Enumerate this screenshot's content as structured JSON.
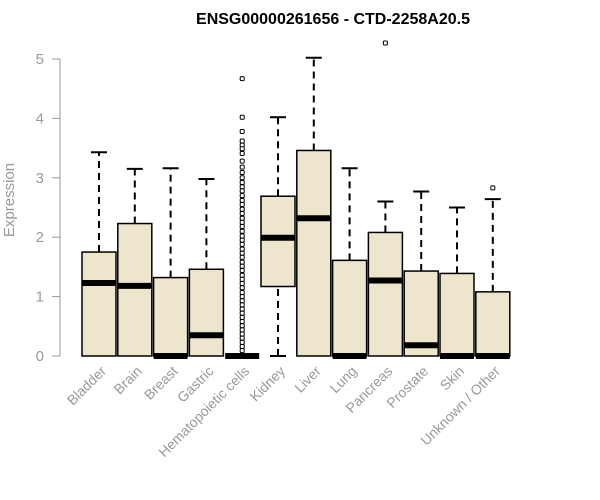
{
  "chart_data": {
    "type": "boxplot",
    "title": "ENSG00000261656 - CTD-2258A20.5",
    "xlabel": "",
    "ylabel": "Expression",
    "ylim": [
      0,
      5
    ],
    "yticks": [
      0,
      1,
      2,
      3,
      4,
      5
    ],
    "box_color": "#ede6cd",
    "categories": [
      "Bladder",
      "Brain",
      "Breast",
      "Gastric",
      "Hematopoietic cells",
      "Kidney",
      "Liver",
      "Lung",
      "Pancreas",
      "Prostate",
      "Skin",
      "Unknown / Other"
    ],
    "boxes": [
      {
        "min": 0,
        "q1": 0,
        "median": 1.23,
        "q3": 1.75,
        "max": 3.43,
        "outliers": []
      },
      {
        "min": 0,
        "q1": 0,
        "median": 1.18,
        "q3": 2.23,
        "max": 3.15,
        "outliers": []
      },
      {
        "min": 0,
        "q1": 0,
        "median": 0.0,
        "q3": 1.32,
        "max": 3.16,
        "outliers": []
      },
      {
        "min": 0,
        "q1": 0,
        "median": 0.35,
        "q3": 1.46,
        "max": 2.98,
        "outliers": []
      },
      {
        "min": 0,
        "q1": 0,
        "median": 0.0,
        "q3": 0.0,
        "max": 0.0,
        "outliers": [
          4.67,
          4.02,
          3.78,
          3.62,
          3.55,
          3.49,
          3.41,
          3.28,
          3.18,
          3.09,
          3.0,
          2.92,
          2.85,
          2.78,
          2.7,
          2.62,
          2.55,
          2.47,
          2.4,
          2.32,
          2.25,
          2.18,
          2.1,
          2.02,
          1.95,
          1.88,
          1.8,
          1.73,
          1.66,
          1.58,
          1.51,
          1.44,
          1.36,
          1.29,
          1.22,
          1.15,
          1.07,
          1.0,
          0.93,
          0.86,
          0.79,
          0.72,
          0.65,
          0.58,
          0.51,
          0.44,
          0.37,
          0.3,
          0.23,
          0.16,
          0.09
        ]
      },
      {
        "min": 0,
        "q1": 1.17,
        "median": 1.99,
        "q3": 2.69,
        "max": 4.02,
        "outliers": []
      },
      {
        "min": 0,
        "q1": 0,
        "median": 2.32,
        "q3": 3.46,
        "max": 5.02,
        "outliers": []
      },
      {
        "min": 0,
        "q1": 0,
        "median": 0.0,
        "q3": 1.61,
        "max": 3.16,
        "outliers": []
      },
      {
        "min": 0,
        "q1": 0,
        "median": 1.27,
        "q3": 2.08,
        "max": 2.6,
        "outliers": [
          5.27
        ]
      },
      {
        "min": 0,
        "q1": 0,
        "median": 0.18,
        "q3": 1.43,
        "max": 2.77,
        "outliers": []
      },
      {
        "min": 0,
        "q1": 0,
        "median": 0.0,
        "q3": 1.39,
        "max": 2.5,
        "outliers": []
      },
      {
        "min": 0,
        "q1": 0,
        "median": 0.0,
        "q3": 1.08,
        "max": 2.64,
        "outliers": [
          2.83
        ]
      }
    ]
  }
}
